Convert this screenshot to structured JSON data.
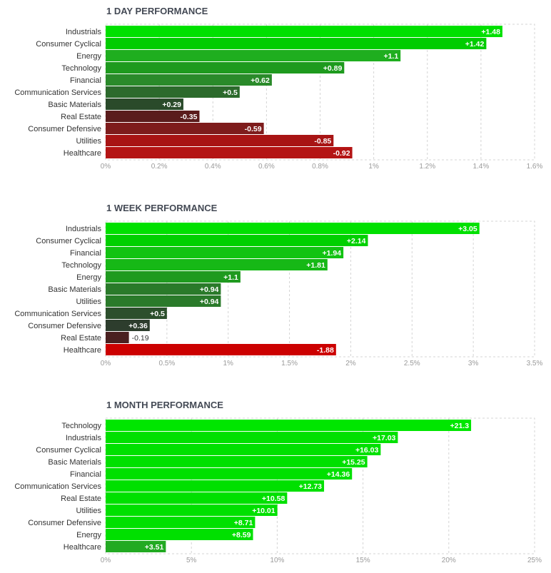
{
  "chart_data": [
    {
      "type": "bar",
      "orientation": "horizontal",
      "title": "1 DAY PERFORMANCE",
      "categories": [
        "Industrials",
        "Consumer Cyclical",
        "Energy",
        "Technology",
        "Financial",
        "Communication Services",
        "Basic Materials",
        "Real Estate",
        "Consumer Defensive",
        "Utilities",
        "Healthcare"
      ],
      "values": [
        1.48,
        1.42,
        1.1,
        0.89,
        0.62,
        0.5,
        0.29,
        -0.35,
        -0.59,
        -0.85,
        -0.92
      ],
      "value_labels": [
        "+1.48",
        "+1.42",
        "+1.1",
        "+0.89",
        "+0.62",
        "+0.5",
        "+0.29",
        "-0.35",
        "-0.59",
        "-0.85",
        "-0.92"
      ],
      "bar_colors": [
        "#00e000",
        "#00cc00",
        "#1fae1f",
        "#1e9a1e",
        "#2a8a2a",
        "#2c6a2c",
        "#2a4a2a",
        "#5a1c1c",
        "#7e1c1c",
        "#a81414",
        "#b41414"
      ],
      "x_ticks": [
        "0%",
        "0.2%",
        "0.4%",
        "0.6%",
        "0.8%",
        "1%",
        "1.2%",
        "1.4%",
        "1.6%"
      ],
      "xlim": [
        0,
        1.6
      ],
      "grid": true
    },
    {
      "type": "bar",
      "orientation": "horizontal",
      "title": "1 WEEK PERFORMANCE",
      "categories": [
        "Industrials",
        "Consumer Cyclical",
        "Financial",
        "Technology",
        "Energy",
        "Basic Materials",
        "Utilities",
        "Communication Services",
        "Consumer Defensive",
        "Real Estate",
        "Healthcare"
      ],
      "values": [
        3.05,
        2.14,
        1.94,
        1.81,
        1.1,
        0.94,
        0.94,
        0.5,
        0.36,
        -0.19,
        -1.88
      ],
      "value_labels": [
        "+3.05",
        "+2.14",
        "+1.94",
        "+1.81",
        "+1.1",
        "+0.94",
        "+0.94",
        "+0.5",
        "+0.36",
        "-0.19",
        "-1.88"
      ],
      "bar_colors": [
        "#00e000",
        "#00d000",
        "#12c312",
        "#16b816",
        "#1f9a1f",
        "#2a7a2a",
        "#2a7a2a",
        "#2c4f2c",
        "#2d3d2d",
        "#4a2020",
        "#cc0000"
      ],
      "x_ticks": [
        "0%",
        "0.5%",
        "1%",
        "1.5%",
        "2%",
        "2.5%",
        "3%",
        "3.5%"
      ],
      "xlim": [
        0,
        3.5
      ],
      "grid": true
    },
    {
      "type": "bar",
      "orientation": "horizontal",
      "title": "1 MONTH PERFORMANCE",
      "categories": [
        "Technology",
        "Industrials",
        "Consumer Cyclical",
        "Basic Materials",
        "Financial",
        "Communication Services",
        "Real Estate",
        "Utilities",
        "Consumer Defensive",
        "Energy",
        "Healthcare"
      ],
      "values": [
        21.3,
        17.03,
        16.03,
        15.25,
        14.36,
        12.73,
        10.58,
        10.01,
        8.71,
        8.59,
        3.51
      ],
      "value_labels": [
        "+21.3",
        "+17.03",
        "+16.03",
        "+15.25",
        "+14.36",
        "+12.73",
        "+10.58",
        "+10.01",
        "+8.71",
        "+8.59",
        "+3.51"
      ],
      "bar_colors": [
        "#00e600",
        "#00e000",
        "#00e000",
        "#00e000",
        "#00e000",
        "#00e000",
        "#00e000",
        "#00e000",
        "#00e000",
        "#00e000",
        "#22aa22"
      ],
      "x_ticks": [
        "0%",
        "5%",
        "10%",
        "15%",
        "20%",
        "25%"
      ],
      "xlim": [
        0,
        25
      ],
      "grid": true
    }
  ]
}
